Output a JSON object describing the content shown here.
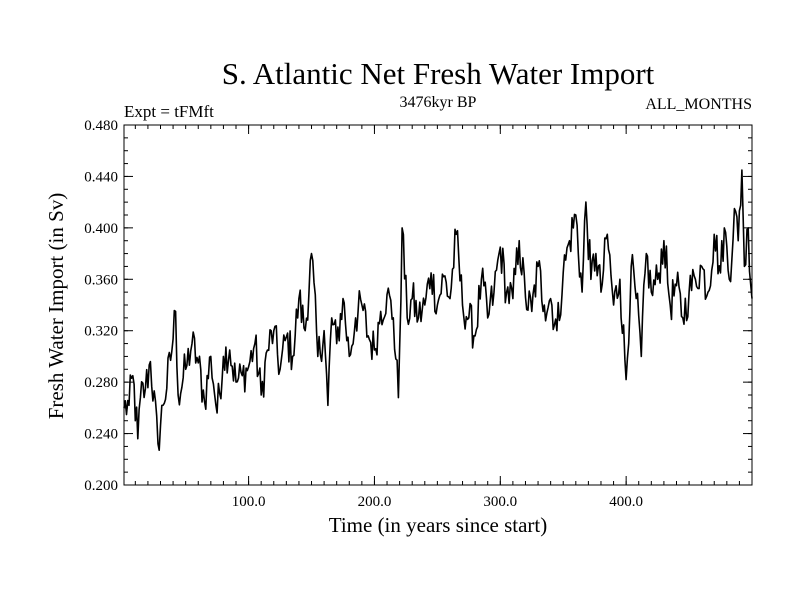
{
  "chart_data": {
    "type": "line",
    "title": "S. Atlantic Net Fresh Water Import",
    "subtitle": "3476kyr BP",
    "left_label": "Expt = tFMft",
    "right_label": "ALL_MONTHS",
    "xlabel": "Time (in years since start)",
    "ylabel": "Fresh Water Import (in Sv)",
    "xlim": [
      1,
      500
    ],
    "ylim": [
      0.2,
      0.48
    ],
    "x_ticks": [
      100,
      200,
      300,
      400
    ],
    "x_tick_labels": [
      "100.0",
      "200.0",
      "300.0",
      "400.0"
    ],
    "y_ticks": [
      0.2,
      0.24,
      0.28,
      0.32,
      0.36,
      0.4,
      0.44,
      0.48
    ],
    "y_tick_labels": [
      "0.200",
      "0.240",
      "0.280",
      "0.320",
      "0.360",
      "0.400",
      "0.440",
      "0.480"
    ],
    "series": [
      {
        "name": "Net Fresh Water Import",
        "trend_start": 0.262,
        "trend_end": 0.378,
        "noise_amplitude": 0.016,
        "anchors": [
          [
            1,
            0.26
          ],
          [
            5,
            0.262
          ],
          [
            8,
            0.285
          ],
          [
            12,
            0.236
          ],
          [
            14,
            0.268
          ],
          [
            18,
            0.275
          ],
          [
            22,
            0.296
          ],
          [
            28,
            0.232
          ],
          [
            32,
            0.262
          ],
          [
            38,
            0.297
          ],
          [
            42,
            0.335
          ],
          [
            44,
            0.27
          ],
          [
            50,
            0.29
          ],
          [
            55,
            0.31
          ],
          [
            60,
            0.295
          ],
          [
            65,
            0.265
          ],
          [
            70,
            0.3
          ],
          [
            75,
            0.256
          ],
          [
            80,
            0.3
          ],
          [
            85,
            0.305
          ],
          [
            90,
            0.28
          ],
          [
            95,
            0.285
          ],
          [
            100,
            0.292
          ],
          [
            105,
            0.31
          ],
          [
            110,
            0.27
          ],
          [
            115,
            0.305
          ],
          [
            120,
            0.32
          ],
          [
            125,
            0.29
          ],
          [
            130,
            0.315
          ],
          [
            135,
            0.3
          ],
          [
            140,
            0.345
          ],
          [
            145,
            0.32
          ],
          [
            150,
            0.38
          ],
          [
            155,
            0.3
          ],
          [
            160,
            0.32
          ],
          [
            163,
            0.262
          ],
          [
            166,
            0.33
          ],
          [
            170,
            0.31
          ],
          [
            175,
            0.345
          ],
          [
            180,
            0.3
          ],
          [
            185,
            0.33
          ],
          [
            190,
            0.34
          ],
          [
            195,
            0.316
          ],
          [
            200,
            0.305
          ],
          [
            205,
            0.335
          ],
          [
            210,
            0.348
          ],
          [
            215,
            0.33
          ],
          [
            219,
            0.268
          ],
          [
            222,
            0.4
          ],
          [
            226,
            0.33
          ],
          [
            230,
            0.345
          ],
          [
            235,
            0.33
          ],
          [
            240,
            0.34
          ],
          [
            245,
            0.365
          ],
          [
            250,
            0.34
          ],
          [
            255,
            0.362
          ],
          [
            260,
            0.345
          ],
          [
            265,
            0.395
          ],
          [
            270,
            0.34
          ],
          [
            275,
            0.33
          ],
          [
            280,
            0.316
          ],
          [
            285,
            0.36
          ],
          [
            290,
            0.33
          ],
          [
            295,
            0.35
          ],
          [
            300,
            0.385
          ],
          [
            305,
            0.35
          ],
          [
            310,
            0.345
          ],
          [
            315,
            0.39
          ],
          [
            320,
            0.346
          ],
          [
            325,
            0.335
          ],
          [
            330,
            0.37
          ],
          [
            335,
            0.34
          ],
          [
            340,
            0.345
          ],
          [
            345,
            0.32
          ],
          [
            350,
            0.365
          ],
          [
            355,
            0.39
          ],
          [
            360,
            0.41
          ],
          [
            365,
            0.35
          ],
          [
            368,
            0.42
          ],
          [
            372,
            0.36
          ],
          [
            376,
            0.38
          ],
          [
            380,
            0.35
          ],
          [
            385,
            0.395
          ],
          [
            390,
            0.34
          ],
          [
            395,
            0.36
          ],
          [
            400,
            0.282
          ],
          [
            404,
            0.37
          ],
          [
            408,
            0.345
          ],
          [
            412,
            0.3
          ],
          [
            416,
            0.38
          ],
          [
            420,
            0.35
          ],
          [
            425,
            0.36
          ],
          [
            430,
            0.39
          ],
          [
            435,
            0.34
          ],
          [
            440,
            0.355
          ],
          [
            445,
            0.33
          ],
          [
            450,
            0.35
          ],
          [
            455,
            0.36
          ],
          [
            460,
            0.37
          ],
          [
            465,
            0.35
          ],
          [
            470,
            0.395
          ],
          [
            475,
            0.365
          ],
          [
            478,
            0.4
          ],
          [
            482,
            0.36
          ],
          [
            486,
            0.415
          ],
          [
            489,
            0.39
          ],
          [
            492,
            0.445
          ],
          [
            494,
            0.37
          ],
          [
            497,
            0.4
          ],
          [
            500,
            0.345
          ]
        ]
      }
    ]
  }
}
